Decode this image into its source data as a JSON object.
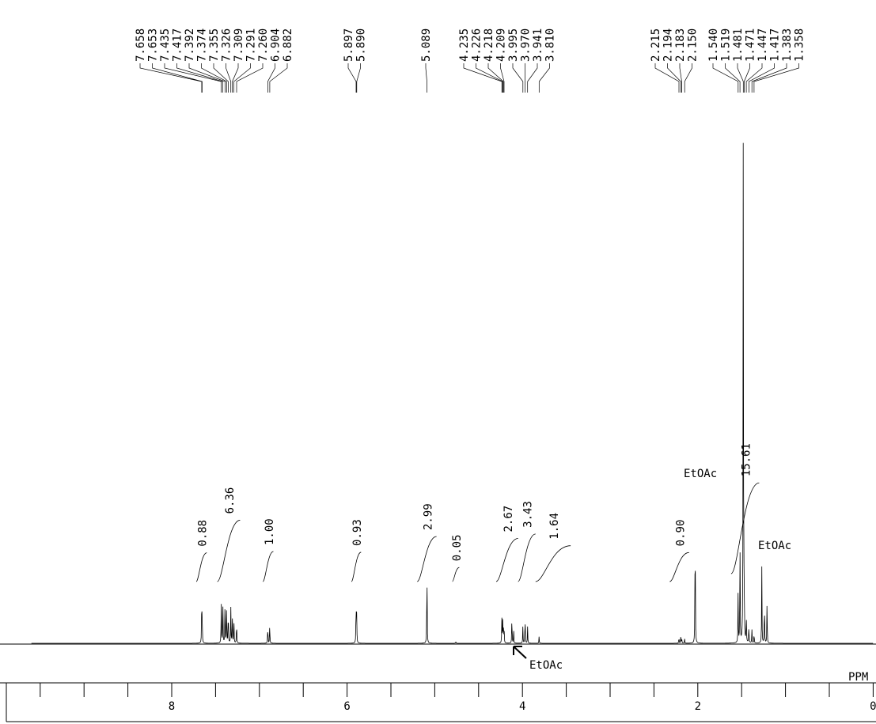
{
  "chart_data": {
    "type": "line",
    "title": "",
    "xlabel": "PPM",
    "ylabel": "",
    "xlim": [
      9.6,
      0.0
    ],
    "x_reversed": true,
    "grid": false,
    "x_tick_labels": [
      "8",
      "6",
      "4",
      "2",
      "0"
    ],
    "x_ticks": [
      8,
      6,
      4,
      2,
      0
    ],
    "peak_labels": [
      "7.658",
      "7.653",
      "7.435",
      "7.417",
      "7.392",
      "7.374",
      "7.355",
      "7.326",
      "7.309",
      "7.291",
      "7.260",
      "6.904",
      "6.882",
      "5.897",
      "5.890",
      "5.089",
      "4.235",
      "4.226",
      "4.218",
      "4.209",
      "3.995",
      "3.970",
      "3.941",
      "3.810",
      "2.215",
      "2.194",
      "2.183",
      "2.150",
      "1.540",
      "1.519",
      "1.481",
      "1.471",
      "1.447",
      "1.417",
      "1.383",
      "1.358"
    ],
    "integrals": [
      {
        "from": 7.72,
        "to": 7.6,
        "value": "0.88"
      },
      {
        "from": 7.48,
        "to": 7.22,
        "value": "6.36"
      },
      {
        "from": 6.96,
        "to": 6.84,
        "value": "1.00"
      },
      {
        "from": 5.95,
        "to": 5.84,
        "value": "0.93"
      },
      {
        "from": 5.2,
        "to": 4.98,
        "value": "2.99"
      },
      {
        "from": 4.8,
        "to": 4.72,
        "value": "0.05"
      },
      {
        "from": 4.3,
        "to": 4.05,
        "value": "2.67"
      },
      {
        "from": 4.05,
        "to": 3.85,
        "value": "3.43"
      },
      {
        "from": 3.85,
        "to": 3.45,
        "value": "1.64"
      },
      {
        "from": 2.32,
        "to": 2.1,
        "value": "0.90"
      },
      {
        "from": 1.62,
        "to": 1.3,
        "value": "15.61"
      }
    ],
    "annotations": [
      {
        "text": "EtOAc",
        "x": 2.03
      },
      {
        "text": "EtOAc",
        "x": 1.27
      },
      {
        "text": "EtOAc",
        "x": 4.12
      }
    ],
    "peaks": [
      {
        "x": 7.658,
        "y": 0.07
      },
      {
        "x": 7.653,
        "y": 0.06
      },
      {
        "x": 7.435,
        "y": 0.085
      },
      {
        "x": 7.417,
        "y": 0.08
      },
      {
        "x": 7.392,
        "y": 0.08
      },
      {
        "x": 7.374,
        "y": 0.075
      },
      {
        "x": 7.355,
        "y": 0.07
      },
      {
        "x": 7.326,
        "y": 0.065
      },
      {
        "x": 7.309,
        "y": 0.06
      },
      {
        "x": 7.291,
        "y": 0.05
      },
      {
        "x": 7.26,
        "y": 0.045
      },
      {
        "x": 6.904,
        "y": 0.035
      },
      {
        "x": 6.882,
        "y": 0.038
      },
      {
        "x": 5.897,
        "y": 0.085
      },
      {
        "x": 5.89,
        "y": 0.05
      },
      {
        "x": 5.089,
        "y": 0.155
      },
      {
        "x": 4.76,
        "y": 0.004
      },
      {
        "x": 4.235,
        "y": 0.045
      },
      {
        "x": 4.226,
        "y": 0.04
      },
      {
        "x": 4.218,
        "y": 0.035
      },
      {
        "x": 4.209,
        "y": 0.03
      },
      {
        "x": 4.12,
        "y": 0.055
      },
      {
        "x": 4.1,
        "y": 0.025
      },
      {
        "x": 3.995,
        "y": 0.03
      },
      {
        "x": 3.97,
        "y": 0.055
      },
      {
        "x": 3.941,
        "y": 0.03
      },
      {
        "x": 3.81,
        "y": 0.012
      },
      {
        "x": 2.215,
        "y": 0.012
      },
      {
        "x": 2.194,
        "y": 0.012
      },
      {
        "x": 2.183,
        "y": 0.01
      },
      {
        "x": 2.15,
        "y": 0.008
      },
      {
        "x": 2.03,
        "y": 0.26
      },
      {
        "x": 1.54,
        "y": 0.09
      },
      {
        "x": 1.519,
        "y": 0.2
      },
      {
        "x": 1.481,
        "y": 1.0
      },
      {
        "x": 1.471,
        "y": 0.12
      },
      {
        "x": 1.447,
        "y": 0.05
      },
      {
        "x": 1.417,
        "y": 0.035
      },
      {
        "x": 1.383,
        "y": 0.025
      },
      {
        "x": 1.358,
        "y": 0.02
      },
      {
        "x": 1.27,
        "y": 0.14
      },
      {
        "x": 1.24,
        "y": 0.085
      },
      {
        "x": 1.21,
        "y": 0.08
      }
    ]
  }
}
